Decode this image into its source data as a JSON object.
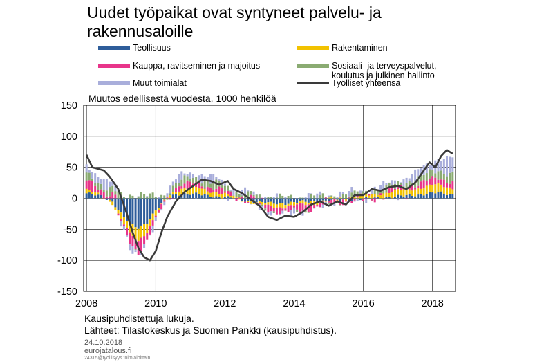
{
  "title": "Uudet työpaikat ovat syntyneet palvelu- ja rakennusaloille",
  "legend": [
    {
      "name": "Teollisuus",
      "color": "#2e5d9a",
      "kind": "bar"
    },
    {
      "name": "Rakentaminen",
      "color": "#f2c200",
      "kind": "bar"
    },
    {
      "name": "Kauppa, ravitseminen ja majoitus",
      "color": "#e8358a",
      "kind": "bar"
    },
    {
      "name": "Sosiaali- ja terveyspalvelut, koulutus ja julkinen hallinto",
      "color": "#8aab72",
      "kind": "bar"
    },
    {
      "name": "Muut toimialat",
      "color": "#a9aedb",
      "kind": "bar"
    },
    {
      "name": "Työlliset yhteensä",
      "color": "#3a3a3a",
      "kind": "line"
    }
  ],
  "subtitle": "Muutos edellisestä vuodesta, 1000 henkilöä",
  "footnote1": "Kausipuhdistettuja lukuja.",
  "footnote2": "Lähteet: Tilastokeskus ja Suomen Pankki (kausipuhdistus).",
  "date": "24.10.2018",
  "site": "eurojatalous.fi",
  "code": "24315@työllisyys toimialoittain",
  "chart_data": {
    "type": "bar",
    "stacked": true,
    "x_unit": "month",
    "x_start": "2008-01",
    "x_end": "2018-08",
    "ylim": [
      -150,
      150
    ],
    "yticks": [
      -150,
      -100,
      -50,
      0,
      50,
      100,
      150
    ],
    "xticks": [
      "2008",
      "2010",
      "2012",
      "2014",
      "2016",
      "2018"
    ],
    "grid": true,
    "anchors": {
      "Teollisuus": [
        [
          "2008-01",
          8
        ],
        [
          "2008-06",
          3
        ],
        [
          "2008-10",
          -5
        ],
        [
          "2009-01",
          -25
        ],
        [
          "2009-04",
          -42
        ],
        [
          "2009-07",
          -48
        ],
        [
          "2009-10",
          -38
        ],
        [
          "2010-01",
          -20
        ],
        [
          "2010-04",
          -5
        ],
        [
          "2010-07",
          5
        ],
        [
          "2010-10",
          8
        ],
        [
          "2011-04",
          6
        ],
        [
          "2011-10",
          3
        ],
        [
          "2012-04",
          0
        ],
        [
          "2012-10",
          -5
        ],
        [
          "2013-04",
          -8
        ],
        [
          "2013-10",
          -8
        ],
        [
          "2014-04",
          -6
        ],
        [
          "2014-10",
          -5
        ],
        [
          "2015-04",
          -3
        ],
        [
          "2015-10",
          -2
        ],
        [
          "2016-04",
          0
        ],
        [
          "2016-10",
          2
        ],
        [
          "2017-04",
          4
        ],
        [
          "2017-10",
          7
        ],
        [
          "2018-03",
          9
        ],
        [
          "2018-08",
          6
        ]
      ],
      "Rakentaminen": [
        [
          "2008-01",
          5
        ],
        [
          "2008-06",
          2
        ],
        [
          "2008-10",
          -3
        ],
        [
          "2009-01",
          -10
        ],
        [
          "2009-04",
          -16
        ],
        [
          "2009-07",
          -20
        ],
        [
          "2009-10",
          -15
        ],
        [
          "2010-01",
          -8
        ],
        [
          "2010-04",
          0
        ],
        [
          "2010-07",
          5
        ],
        [
          "2010-10",
          8
        ],
        [
          "2011-04",
          10
        ],
        [
          "2011-10",
          7
        ],
        [
          "2012-04",
          2
        ],
        [
          "2012-10",
          -2
        ],
        [
          "2013-04",
          -5
        ],
        [
          "2013-10",
          -6
        ],
        [
          "2014-04",
          -4
        ],
        [
          "2014-10",
          -2
        ],
        [
          "2015-04",
          0
        ],
        [
          "2015-10",
          2
        ],
        [
          "2016-04",
          5
        ],
        [
          "2016-10",
          8
        ],
        [
          "2017-04",
          10
        ],
        [
          "2017-10",
          11
        ],
        [
          "2018-03",
          13
        ],
        [
          "2018-08",
          11
        ]
      ],
      "Kauppa": [
        [
          "2008-01",
          15
        ],
        [
          "2008-06",
          10
        ],
        [
          "2008-10",
          5
        ],
        [
          "2009-01",
          -5
        ],
        [
          "2009-04",
          -14
        ],
        [
          "2009-07",
          -18
        ],
        [
          "2009-10",
          -15
        ],
        [
          "2010-01",
          -8
        ],
        [
          "2010-04",
          -2
        ],
        [
          "2010-07",
          5
        ],
        [
          "2010-10",
          6
        ],
        [
          "2011-04",
          8
        ],
        [
          "2011-10",
          6
        ],
        [
          "2012-04",
          3
        ],
        [
          "2012-10",
          0
        ],
        [
          "2013-04",
          -6
        ],
        [
          "2013-10",
          -8
        ],
        [
          "2014-04",
          -10
        ],
        [
          "2014-10",
          -6
        ],
        [
          "2015-04",
          -3
        ],
        [
          "2015-10",
          -2
        ],
        [
          "2016-04",
          0
        ],
        [
          "2016-10",
          2
        ],
        [
          "2017-04",
          5
        ],
        [
          "2017-10",
          8
        ],
        [
          "2018-03",
          11
        ],
        [
          "2018-08",
          10
        ]
      ],
      "Sosiaali": [
        [
          "2008-01",
          10
        ],
        [
          "2008-06",
          9
        ],
        [
          "2008-10",
          8
        ],
        [
          "2009-01",
          6
        ],
        [
          "2009-04",
          5
        ],
        [
          "2009-07",
          4
        ],
        [
          "2009-10",
          4
        ],
        [
          "2010-01",
          4
        ],
        [
          "2010-04",
          5
        ],
        [
          "2010-07",
          6
        ],
        [
          "2010-10",
          7
        ],
        [
          "2011-04",
          9
        ],
        [
          "2011-10",
          8
        ],
        [
          "2012-04",
          6
        ],
        [
          "2012-10",
          4
        ],
        [
          "2013-04",
          2
        ],
        [
          "2013-10",
          1
        ],
        [
          "2014-04",
          1
        ],
        [
          "2014-10",
          2
        ],
        [
          "2015-04",
          3
        ],
        [
          "2015-10",
          4
        ],
        [
          "2016-04",
          5
        ],
        [
          "2016-10",
          6
        ],
        [
          "2017-04",
          8
        ],
        [
          "2017-10",
          10
        ],
        [
          "2018-03",
          14
        ],
        [
          "2018-08",
          12
        ]
      ],
      "Muut": [
        [
          "2008-01",
          15
        ],
        [
          "2008-06",
          12
        ],
        [
          "2008-10",
          8
        ],
        [
          "2009-01",
          0
        ],
        [
          "2009-04",
          -6
        ],
        [
          "2009-07",
          -8
        ],
        [
          "2009-10",
          -6
        ],
        [
          "2010-01",
          -2
        ],
        [
          "2010-04",
          3
        ],
        [
          "2010-07",
          6
        ],
        [
          "2010-10",
          8
        ],
        [
          "2011-04",
          9
        ],
        [
          "2011-10",
          7
        ],
        [
          "2012-04",
          4
        ],
        [
          "2012-10",
          2
        ],
        [
          "2013-04",
          -2
        ],
        [
          "2013-10",
          -3
        ],
        [
          "2014-04",
          -1
        ],
        [
          "2014-10",
          1
        ],
        [
          "2015-04",
          2
        ],
        [
          "2015-10",
          2
        ],
        [
          "2016-04",
          3
        ],
        [
          "2016-10",
          5
        ],
        [
          "2017-04",
          8
        ],
        [
          "2017-10",
          12
        ],
        [
          "2018-03",
          20
        ],
        [
          "2018-08",
          25
        ]
      ],
      "Tyolliset": [
        [
          "2008-01",
          70
        ],
        [
          "2008-03",
          50
        ],
        [
          "2008-07",
          45
        ],
        [
          "2008-09",
          35
        ],
        [
          "2008-12",
          15
        ],
        [
          "2009-03",
          -25
        ],
        [
          "2009-05",
          -55
        ],
        [
          "2009-07",
          -80
        ],
        [
          "2009-09",
          -95
        ],
        [
          "2009-11",
          -100
        ],
        [
          "2010-01",
          -85
        ],
        [
          "2010-03",
          -55
        ],
        [
          "2010-05",
          -30
        ],
        [
          "2010-08",
          -5
        ],
        [
          "2010-11",
          10
        ],
        [
          "2011-02",
          20
        ],
        [
          "2011-05",
          30
        ],
        [
          "2011-08",
          28
        ],
        [
          "2011-11",
          22
        ],
        [
          "2012-02",
          28
        ],
        [
          "2012-04",
          15
        ],
        [
          "2012-07",
          8
        ],
        [
          "2012-10",
          -2
        ],
        [
          "2013-01",
          -12
        ],
        [
          "2013-04",
          -30
        ],
        [
          "2013-07",
          -35
        ],
        [
          "2013-10",
          -28
        ],
        [
          "2014-01",
          -30
        ],
        [
          "2014-04",
          -22
        ],
        [
          "2014-07",
          -10
        ],
        [
          "2014-10",
          -5
        ],
        [
          "2015-01",
          -12
        ],
        [
          "2015-04",
          -5
        ],
        [
          "2015-07",
          -10
        ],
        [
          "2015-10",
          5
        ],
        [
          "2016-01",
          5
        ],
        [
          "2016-04",
          15
        ],
        [
          "2016-07",
          12
        ],
        [
          "2016-10",
          18
        ],
        [
          "2017-01",
          20
        ],
        [
          "2017-04",
          15
        ],
        [
          "2017-07",
          25
        ],
        [
          "2017-10",
          45
        ],
        [
          "2017-12",
          58
        ],
        [
          "2018-02",
          50
        ],
        [
          "2018-04",
          68
        ],
        [
          "2018-06",
          78
        ],
        [
          "2018-08",
          72
        ]
      ]
    }
  }
}
